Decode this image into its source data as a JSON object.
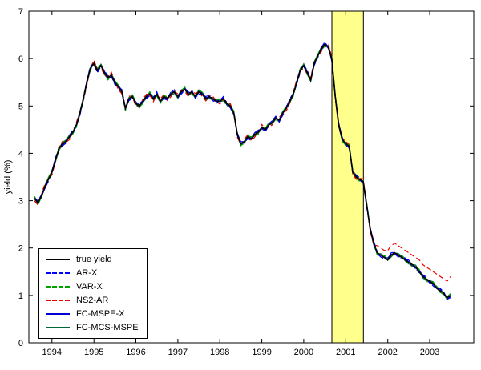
{
  "chart_data": {
    "type": "line",
    "title": "",
    "xlabel": "",
    "ylabel": "yield (%)",
    "xlim": [
      1993.45,
      2004.05
    ],
    "ylim": [
      0,
      7
    ],
    "xticks": [
      1994,
      1995,
      1996,
      1997,
      1998,
      1999,
      2000,
      2001,
      2002,
      2003
    ],
    "yticks": [
      0,
      1,
      2,
      3,
      4,
      5,
      6,
      7
    ],
    "grid": false,
    "legend_position": "lower left",
    "shaded_region": {
      "x_start": 2000.67,
      "x_end": 2001.42,
      "fill": "#FFFF8C",
      "edge": "#000000"
    },
    "x": {
      "start": 1993.583,
      "step": 0.08333,
      "count": 120,
      "unit": "year (monthly)"
    },
    "series": [
      {
        "name": "true yield",
        "color": "#000000",
        "line_style": "solid",
        "line_width": 1.6,
        "values": [
          3.05,
          2.95,
          3.1,
          3.3,
          3.45,
          3.6,
          3.85,
          4.1,
          4.2,
          4.25,
          4.35,
          4.45,
          4.6,
          4.85,
          5.15,
          5.5,
          5.8,
          5.9,
          5.75,
          5.85,
          5.7,
          5.6,
          5.65,
          5.5,
          5.4,
          5.3,
          4.95,
          5.15,
          5.2,
          5.05,
          5.0,
          5.1,
          5.2,
          5.25,
          5.15,
          5.25,
          5.1,
          5.2,
          5.15,
          5.25,
          5.3,
          5.2,
          5.3,
          5.35,
          5.25,
          5.3,
          5.2,
          5.3,
          5.25,
          5.15,
          5.2,
          5.15,
          5.1,
          5.1,
          5.15,
          5.05,
          5.0,
          4.85,
          4.4,
          4.2,
          4.25,
          4.35,
          4.3,
          4.4,
          4.45,
          4.55,
          4.5,
          4.6,
          4.65,
          4.75,
          4.7,
          4.85,
          4.95,
          5.1,
          5.25,
          5.5,
          5.75,
          5.85,
          5.7,
          5.55,
          5.9,
          6.05,
          6.2,
          6.3,
          6.25,
          6.0,
          5.2,
          4.6,
          4.3,
          4.2,
          4.15,
          3.6,
          3.5,
          3.45,
          3.4,
          2.9,
          2.4,
          2.1,
          1.9,
          1.85,
          1.8,
          1.75,
          1.85,
          1.9,
          1.85,
          1.8,
          1.75,
          1.7,
          1.65,
          1.6,
          1.5,
          1.4,
          1.35,
          1.3,
          1.25,
          1.15,
          1.1,
          1.05,
          0.95,
          1.0
        ]
      },
      {
        "name": "AR-X",
        "color": "#0000FF",
        "line_style": "dashed",
        "line_width": 1.2,
        "tracks_series": "true yield",
        "deviation_amplitude": 0.05,
        "deviation_phase": 0
      },
      {
        "name": "VAR-X",
        "color": "#00A000",
        "line_style": "dashed",
        "line_width": 1.2,
        "tracks_series": "true yield",
        "deviation_amplitude": 0.05,
        "deviation_phase": 2.1
      },
      {
        "name": "NS2-AR",
        "color": "#EE0000",
        "line_style": "dashed",
        "line_width": 1.2,
        "tracks_series": "true yield",
        "deviation_amplitude": 0.06,
        "deviation_phase": 4.2,
        "late_period_values": {
          "start_index": 98,
          "values": [
            2.05,
            2.0,
            1.95,
            1.95,
            2.05,
            2.1,
            2.05,
            2.0,
            1.95,
            1.9,
            1.85,
            1.8,
            1.75,
            1.65,
            1.6,
            1.55,
            1.5,
            1.45,
            1.4,
            1.35,
            1.3,
            1.4
          ]
        }
      },
      {
        "name": "FC-MSPE-X",
        "color": "#0000D0",
        "line_style": "solid",
        "line_width": 1.2,
        "tracks_series": "true yield",
        "deviation_amplitude": 0.04,
        "deviation_phase": 1.0
      },
      {
        "name": "FC-MCS-MSPE",
        "color": "#006633",
        "line_style": "solid",
        "line_width": 1.2,
        "tracks_series": "true yield",
        "deviation_amplitude": 0.04,
        "deviation_phase": 3.1
      }
    ]
  }
}
